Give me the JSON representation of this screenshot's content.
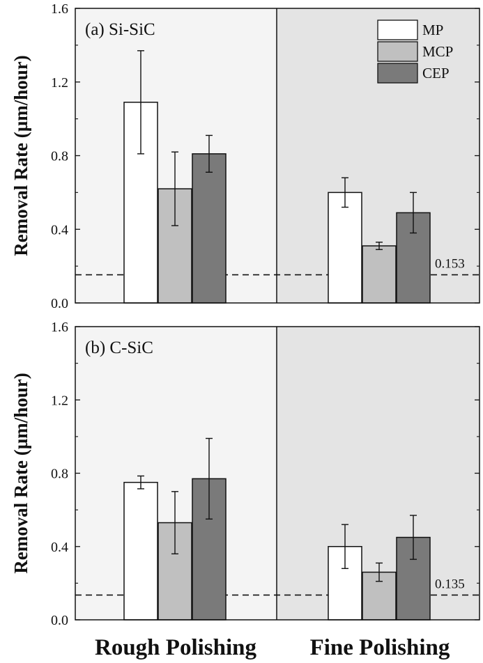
{
  "chart_data": [
    {
      "type": "bar",
      "panel_label": "(a) Si-SiC",
      "ylabel": "Removal Rate (µm/hour)",
      "ylim": [
        0,
        1.6
      ],
      "yticks": [
        "0.0",
        "0.4",
        "0.8",
        "1.2",
        "1.6"
      ],
      "categories": [
        "Rough Polishing",
        "Fine Polishing"
      ],
      "series": [
        {
          "name": "MP",
          "values": [
            1.09,
            0.6
          ],
          "errors": [
            0.28,
            0.08
          ],
          "color": "#ffffff"
        },
        {
          "name": "MCP",
          "values": [
            0.62,
            0.31
          ],
          "errors": [
            0.2,
            0.02
          ],
          "color": "#c0c0c0"
        },
        {
          "name": "CEP",
          "values": [
            0.81,
            0.49
          ],
          "errors": [
            0.1,
            0.11
          ],
          "color": "#7a7a7a"
        }
      ],
      "reference": {
        "value": 0.153,
        "label": "0.153"
      },
      "legend_position": "top-right",
      "background_colors": [
        "#f4f4f4",
        "#e4e4e4"
      ]
    },
    {
      "type": "bar",
      "panel_label": "(b) C-SiC",
      "ylabel": "Removal Rate (µm/hour)",
      "ylim": [
        0,
        1.6
      ],
      "yticks": [
        "0.0",
        "0.4",
        "0.8",
        "1.2",
        "1.6"
      ],
      "categories": [
        "Rough Polishing",
        "Fine Polishing"
      ],
      "series": [
        {
          "name": "MP",
          "values": [
            0.75,
            0.4
          ],
          "errors": [
            0.035,
            0.12
          ],
          "color": "#ffffff"
        },
        {
          "name": "MCP",
          "values": [
            0.53,
            0.26
          ],
          "errors": [
            0.17,
            0.05
          ],
          "color": "#c0c0c0"
        },
        {
          "name": "CEP",
          "values": [
            0.77,
            0.45
          ],
          "errors": [
            0.22,
            0.12
          ],
          "color": "#7a7a7a"
        }
      ],
      "reference": {
        "value": 0.135,
        "label": "0.135"
      },
      "background_colors": [
        "#f4f4f4",
        "#e4e4e4"
      ]
    }
  ]
}
